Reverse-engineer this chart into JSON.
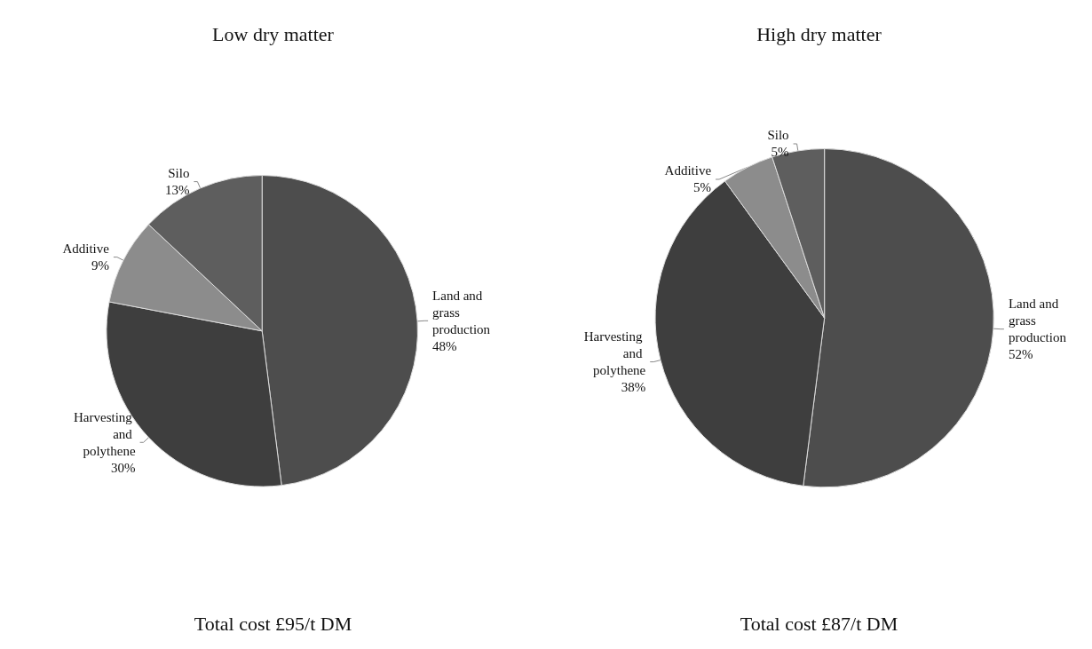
{
  "chart_data": [
    {
      "type": "pie",
      "title": "Low dry matter",
      "categories": [
        "Land and grass production",
        "Harvesting and polythene",
        "Additive",
        "Silo"
      ],
      "values": [
        48,
        30,
        9,
        13
      ],
      "value_labels": [
        "48%",
        "30%",
        "9%",
        "13%"
      ],
      "colors": [
        "#4d4d4d",
        "#3e3e3e",
        "#8c8c8c",
        "#5e5e5e"
      ],
      "legend": false,
      "annotations": [
        "Total cost £95/t DM"
      ]
    },
    {
      "type": "pie",
      "title": "High dry matter",
      "categories": [
        "Land and grass production",
        "Harvesting and polythene",
        "Additive",
        "Silo"
      ],
      "values": [
        52,
        38,
        5,
        5
      ],
      "value_labels": [
        "52%",
        "38%",
        "5%",
        "5%"
      ],
      "colors": [
        "#4d4d4d",
        "#3e3e3e",
        "#8c8c8c",
        "#5e5e5e"
      ],
      "legend": false,
      "annotations": [
        "Total cost £87/t DM"
      ]
    }
  ]
}
